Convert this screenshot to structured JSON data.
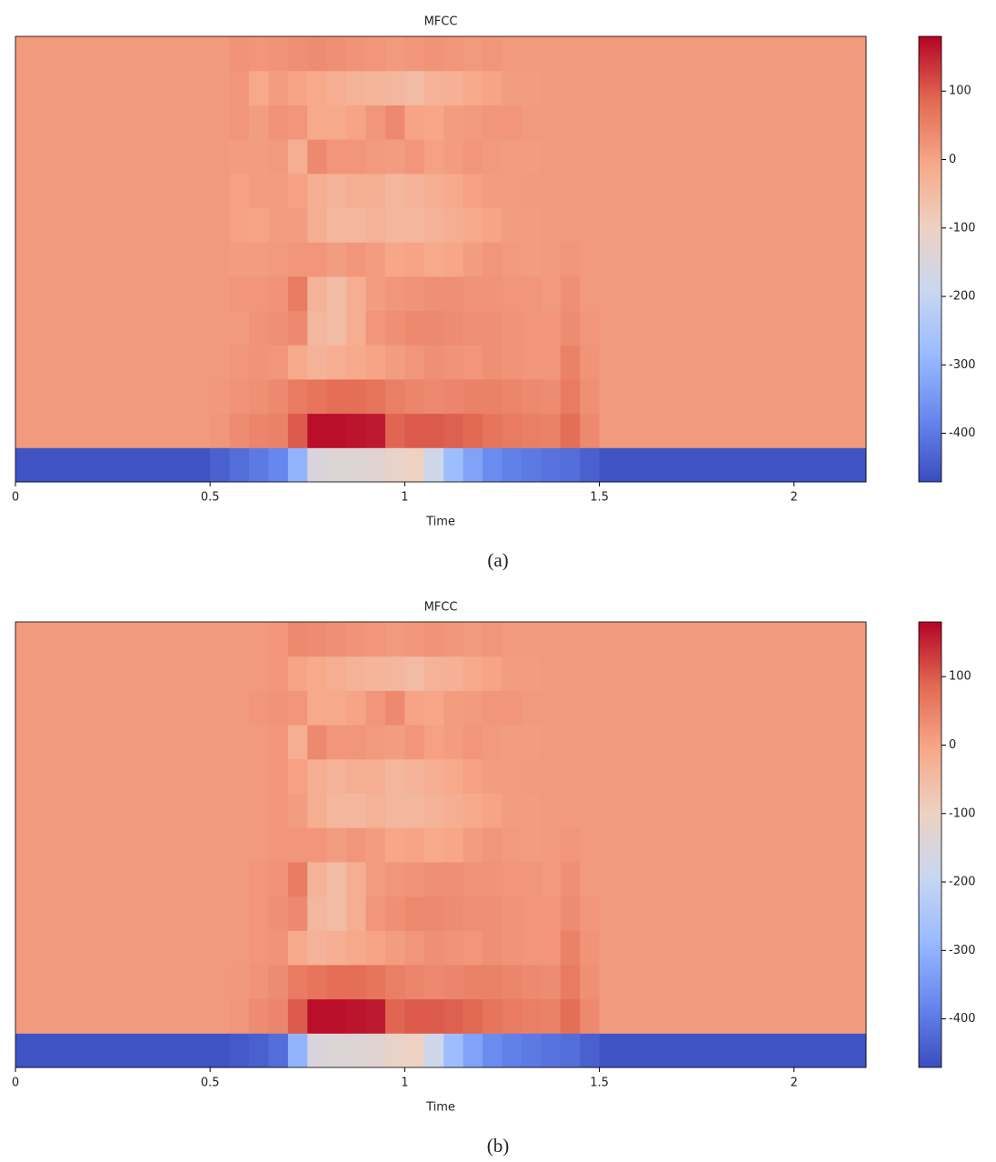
{
  "chart_data": [
    {
      "type": "heatmap",
      "title": "MFCC",
      "xlabel": "Time",
      "caption": "(a)",
      "x_edges": [
        0,
        0.5,
        0.55,
        0.6,
        0.65,
        0.7,
        0.75,
        0.8,
        0.85,
        0.9,
        0.95,
        1.0,
        1.05,
        1.1,
        1.15,
        1.2,
        1.25,
        1.3,
        1.35,
        1.4,
        1.45,
        1.5,
        2.185
      ],
      "xlim": [
        0,
        2.185
      ],
      "xticks": [
        0,
        0.5,
        1,
        1.5,
        2
      ],
      "clim": [
        -471,
        180
      ],
      "cticks": [
        100,
        0,
        -100,
        -200,
        -300,
        -400
      ],
      "colormap": [
        "#3b4cc0",
        "#6788ee",
        "#9abbff",
        "#c9d7f0",
        "#edd1c2",
        "#f7a889",
        "#e26952",
        "#b40426"
      ],
      "z": [
        [
          -460,
          -440,
          -420,
          -400,
          -380,
          -300,
          -150,
          -140,
          -140,
          -130,
          -110,
          -100,
          -180,
          -280,
          -330,
          -370,
          -390,
          -400,
          -410,
          -420,
          -440,
          -460
        ],
        [
          15,
          20,
          35,
          45,
          50,
          100,
          170,
          170,
          165,
          160,
          90,
          100,
          100,
          95,
          85,
          70,
          60,
          55,
          50,
          80,
          40,
          15
        ],
        [
          15,
          18,
          25,
          30,
          40,
          60,
          70,
          80,
          80,
          70,
          55,
          45,
          40,
          45,
          50,
          50,
          45,
          40,
          35,
          60,
          30,
          15
        ],
        [
          15,
          15,
          20,
          25,
          20,
          -10,
          -30,
          -20,
          -10,
          0,
          10,
          20,
          30,
          25,
          20,
          30,
          25,
          20,
          20,
          50,
          25,
          15
        ],
        [
          15,
          15,
          15,
          25,
          30,
          40,
          -40,
          -50,
          -20,
          20,
          30,
          40,
          40,
          35,
          30,
          30,
          25,
          20,
          20,
          35,
          20,
          15
        ],
        [
          15,
          15,
          20,
          20,
          25,
          60,
          -30,
          -50,
          -20,
          10,
          20,
          25,
          30,
          30,
          25,
          25,
          20,
          20,
          15,
          30,
          15,
          15
        ],
        [
          15,
          15,
          10,
          10,
          15,
          20,
          20,
          10,
          20,
          10,
          -5,
          0,
          -10,
          -5,
          10,
          20,
          15,
          10,
          15,
          20,
          15,
          15
        ],
        [
          15,
          15,
          5,
          0,
          10,
          10,
          -20,
          -40,
          -40,
          -30,
          -40,
          -40,
          -30,
          -20,
          -10,
          0,
          10,
          10,
          15,
          15,
          15,
          15
        ],
        [
          15,
          15,
          5,
          10,
          10,
          5,
          -20,
          -30,
          -20,
          -20,
          -40,
          -30,
          -20,
          -10,
          5,
          10,
          10,
          15,
          15,
          15,
          15,
          15
        ],
        [
          15,
          15,
          10,
          10,
          15,
          -20,
          40,
          20,
          20,
          15,
          10,
          20,
          5,
          10,
          20,
          15,
          10,
          10,
          15,
          15,
          15,
          15
        ],
        [
          15,
          15,
          20,
          10,
          25,
          20,
          -10,
          -10,
          0,
          20,
          40,
          0,
          -5,
          10,
          15,
          20,
          20,
          15,
          15,
          15,
          15,
          15
        ],
        [
          15,
          15,
          20,
          -10,
          10,
          0,
          -10,
          -20,
          -30,
          -35,
          -40,
          -50,
          -30,
          -25,
          -10,
          0,
          10,
          10,
          15,
          15,
          15,
          15
        ],
        [
          15,
          15,
          25,
          20,
          25,
          30,
          35,
          30,
          25,
          20,
          15,
          20,
          25,
          20,
          15,
          20,
          15,
          15,
          15,
          15,
          15,
          15
        ]
      ]
    },
    {
      "type": "heatmap",
      "title": "MFCC",
      "xlabel": "Time",
      "caption": "(b)",
      "x_edges": [
        0,
        0.5,
        0.55,
        0.6,
        0.65,
        0.7,
        0.75,
        0.8,
        0.85,
        0.9,
        0.95,
        1.0,
        1.05,
        1.1,
        1.15,
        1.2,
        1.25,
        1.3,
        1.35,
        1.4,
        1.45,
        1.5,
        2.185
      ],
      "xlim": [
        0,
        2.185
      ],
      "xticks": [
        0,
        0.5,
        1,
        1.5,
        2
      ],
      "clim": [
        -471,
        180
      ],
      "cticks": [
        100,
        0,
        -100,
        -200,
        -300,
        -400
      ],
      "colormap": [
        "#3b4cc0",
        "#6788ee",
        "#9abbff",
        "#c9d7f0",
        "#edd1c2",
        "#f7a889",
        "#e26952",
        "#b40426"
      ],
      "z": [
        [
          -460,
          -460,
          -450,
          -440,
          -420,
          -300,
          -150,
          -140,
          -140,
          -130,
          -110,
          -100,
          -180,
          -280,
          -330,
          -370,
          -390,
          -400,
          -410,
          -420,
          -440,
          -460
        ],
        [
          15,
          15,
          20,
          35,
          45,
          100,
          170,
          170,
          165,
          160,
          90,
          100,
          100,
          95,
          85,
          70,
          60,
          55,
          50,
          80,
          40,
          15
        ],
        [
          15,
          15,
          18,
          25,
          35,
          60,
          70,
          80,
          80,
          70,
          55,
          45,
          40,
          45,
          50,
          50,
          45,
          40,
          35,
          60,
          30,
          15
        ],
        [
          15,
          15,
          15,
          20,
          25,
          -10,
          -30,
          -20,
          -10,
          0,
          10,
          20,
          30,
          25,
          20,
          30,
          25,
          20,
          20,
          50,
          25,
          15
        ],
        [
          15,
          15,
          15,
          20,
          30,
          40,
          -40,
          -50,
          -20,
          20,
          30,
          40,
          40,
          35,
          30,
          30,
          25,
          20,
          20,
          35,
          20,
          15
        ],
        [
          15,
          15,
          15,
          20,
          25,
          60,
          -30,
          -50,
          -20,
          10,
          20,
          25,
          30,
          30,
          25,
          25,
          20,
          20,
          15,
          30,
          15,
          15
        ],
        [
          15,
          15,
          15,
          15,
          20,
          20,
          20,
          10,
          20,
          10,
          -5,
          0,
          -10,
          -5,
          10,
          20,
          15,
          10,
          15,
          20,
          15,
          15
        ],
        [
          15,
          15,
          15,
          15,
          20,
          10,
          -20,
          -40,
          -40,
          -30,
          -40,
          -40,
          -30,
          -20,
          -10,
          0,
          10,
          10,
          15,
          15,
          15,
          15
        ],
        [
          15,
          15,
          15,
          15,
          20,
          5,
          -20,
          -30,
          -20,
          -20,
          -40,
          -30,
          -20,
          -10,
          5,
          10,
          10,
          15,
          15,
          15,
          15,
          15
        ],
        [
          15,
          15,
          15,
          15,
          20,
          -20,
          40,
          20,
          20,
          15,
          10,
          20,
          5,
          10,
          20,
          15,
          10,
          10,
          15,
          15,
          15,
          15
        ],
        [
          15,
          15,
          15,
          20,
          25,
          20,
          -10,
          -10,
          0,
          20,
          40,
          0,
          -5,
          10,
          15,
          20,
          20,
          15,
          15,
          15,
          15,
          15
        ],
        [
          15,
          15,
          15,
          15,
          20,
          0,
          -10,
          -20,
          -30,
          -35,
          -40,
          -50,
          -30,
          -25,
          -10,
          0,
          10,
          10,
          15,
          15,
          15,
          15
        ],
        [
          15,
          15,
          15,
          15,
          20,
          40,
          35,
          30,
          25,
          20,
          15,
          20,
          25,
          20,
          15,
          20,
          15,
          15,
          15,
          15,
          15,
          15
        ]
      ]
    }
  ]
}
